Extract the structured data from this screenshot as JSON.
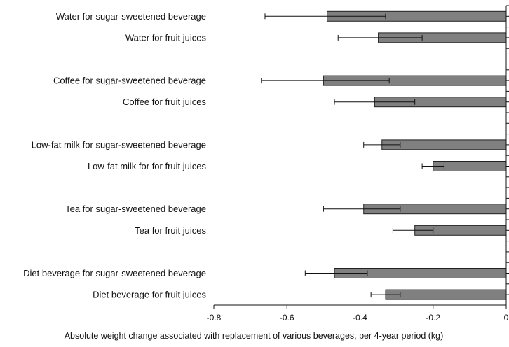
{
  "chart_data": {
    "type": "bar",
    "orientation": "horizontal",
    "categories": [
      "Water for sugar-sweetened beverage",
      "Water for fruit juices",
      "Coffee for sugar-sweetened beverage",
      "Coffee for fruit juices",
      "Low-fat milk for sugar-sweetened beverage",
      "Low-fat milk for  for fruit juices",
      "Tea for sugar-sweetened beverage",
      "Tea for fruit juices",
      "Diet beverage  for sugar-sweetened beverage",
      "Diet beverage for fruit juices"
    ],
    "values": [
      -0.49,
      -0.35,
      -0.5,
      -0.36,
      -0.34,
      -0.2,
      -0.39,
      -0.25,
      -0.47,
      -0.33
    ],
    "error_low": [
      -0.66,
      -0.46,
      -0.67,
      -0.47,
      -0.39,
      -0.23,
      -0.5,
      -0.31,
      -0.55,
      -0.37
    ],
    "error_high": [
      -0.33,
      -0.23,
      -0.32,
      -0.25,
      -0.29,
      -0.17,
      -0.29,
      -0.2,
      -0.38,
      -0.29
    ],
    "xlabel": "Absolute weight change associated with replacement of various beverages, per 4-year period (kg)",
    "ylabel": "",
    "title": "",
    "xlim": [
      -0.8,
      0
    ],
    "xticks": [
      -0.8,
      -0.6,
      -0.4,
      -0.2,
      0
    ],
    "xtick_labels": [
      "-0.8",
      "-0.6",
      "-0.4",
      "-0.2",
      "0"
    ],
    "grid": false,
    "bar_color": "#808080",
    "bar_edge_color": "#222222"
  }
}
